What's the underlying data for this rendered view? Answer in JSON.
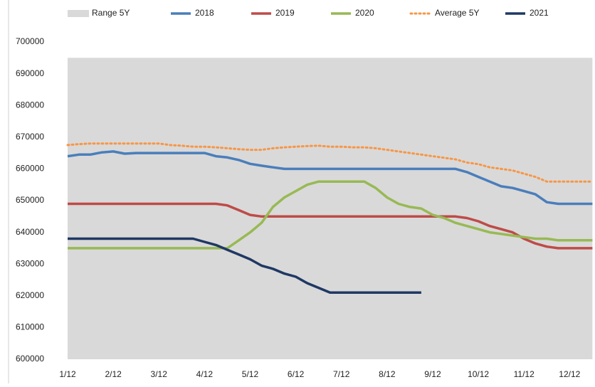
{
  "chart_data": {
    "type": "line",
    "categories": [
      "1/12",
      null,
      null,
      null,
      "2/12",
      null,
      null,
      null,
      "3/12",
      null,
      null,
      null,
      "4/12",
      null,
      null,
      null,
      "5/12",
      null,
      null,
      null,
      "6/12",
      null,
      null,
      null,
      "7/12",
      null,
      null,
      null,
      "8/12",
      null,
      null,
      null,
      "9/12",
      null,
      null,
      null,
      "10/12",
      null,
      null,
      null,
      "11/12",
      null,
      null,
      null,
      "12/12",
      null,
      null
    ],
    "ylim": [
      600000,
      700000
    ],
    "yticks": [
      600000,
      610000,
      620000,
      630000,
      640000,
      650000,
      660000,
      670000,
      680000,
      690000,
      700000
    ],
    "legend": "top",
    "series": [
      {
        "name": "Range 5Y",
        "color": "#d9d9d9",
        "kind": "area",
        "values": [
          695000,
          695000,
          695000,
          695000,
          695000,
          695000,
          695000,
          695000,
          695000,
          695000,
          695000,
          695000,
          695000,
          695000,
          695000,
          695000,
          695000,
          695000,
          695000,
          695000,
          695000,
          695000,
          695000,
          695000,
          695000,
          695000,
          695000,
          695000,
          695000,
          695000,
          695000,
          695000,
          695000,
          695000,
          695000,
          695000,
          695000,
          695000,
          695000,
          695000,
          695000,
          695000,
          695000,
          695000,
          695000,
          695000,
          695000
        ]
      },
      {
        "name": "2018",
        "color": "#4a7ebb",
        "kind": "line",
        "values": [
          664000,
          664500,
          664500,
          665200,
          665500,
          664800,
          665000,
          665000,
          665000,
          665000,
          665000,
          665000,
          665000,
          664000,
          663600,
          662800,
          661600,
          661000,
          660500,
          660000,
          660000,
          660000,
          660000,
          660000,
          660000,
          660000,
          660000,
          660000,
          660000,
          660000,
          660000,
          660000,
          660000,
          660000,
          660000,
          659000,
          657500,
          656000,
          654500,
          654000,
          653000,
          652000,
          649500,
          649000,
          649000,
          649000,
          649000
        ]
      },
      {
        "name": "2019",
        "color": "#be4b48",
        "kind": "line",
        "values": [
          649000,
          649000,
          649000,
          649000,
          649000,
          649000,
          649000,
          649000,
          649000,
          649000,
          649000,
          649000,
          649000,
          649000,
          648500,
          647000,
          645500,
          645000,
          645000,
          645000,
          645000,
          645000,
          645000,
          645000,
          645000,
          645000,
          645000,
          645000,
          645000,
          645000,
          645000,
          645000,
          645000,
          645000,
          645000,
          644500,
          643500,
          642000,
          641000,
          640000,
          638000,
          636500,
          635500,
          635000,
          635000,
          635000,
          635000
        ]
      },
      {
        "name": "2020",
        "color": "#98b954",
        "kind": "line",
        "values": [
          635000,
          635000,
          635000,
          635000,
          635000,
          635000,
          635000,
          635000,
          635000,
          635000,
          635000,
          635000,
          635000,
          635000,
          635000,
          637500,
          640000,
          643000,
          648000,
          651000,
          653000,
          655000,
          656000,
          656000,
          656000,
          656000,
          656000,
          654000,
          651000,
          649000,
          648000,
          647500,
          645500,
          644500,
          643000,
          642000,
          641000,
          640000,
          639500,
          639000,
          638500,
          638000,
          638000,
          637500,
          637500,
          637500,
          637500
        ]
      },
      {
        "name": "Average 5Y",
        "color": "#f79646",
        "kind": "dotted",
        "values": [
          667500,
          667800,
          668000,
          668000,
          668000,
          668000,
          668000,
          668000,
          668000,
          667500,
          667300,
          667000,
          667000,
          666800,
          666500,
          666200,
          666000,
          666000,
          666500,
          666800,
          667000,
          667200,
          667300,
          667000,
          667000,
          666800,
          666800,
          666500,
          666000,
          665500,
          665000,
          664500,
          664000,
          663500,
          663000,
          662000,
          661500,
          660500,
          660000,
          659500,
          658500,
          657500,
          656000,
          656000,
          656000,
          656000,
          656000
        ]
      },
      {
        "name": "2021",
        "color": "#1f3864",
        "kind": "line",
        "values": [
          638000,
          638000,
          638000,
          638000,
          638000,
          638000,
          638000,
          638000,
          638000,
          638000,
          638000,
          638000,
          637000,
          636000,
          634500,
          633000,
          631500,
          629500,
          628500,
          627000,
          626000,
          624000,
          622500,
          621000,
          621000,
          621000,
          621000,
          621000,
          621000,
          621000,
          621000,
          621000,
          null,
          null,
          null,
          null,
          null,
          null,
          null,
          null,
          null,
          null,
          null,
          null,
          null,
          null,
          null
        ]
      }
    ]
  }
}
